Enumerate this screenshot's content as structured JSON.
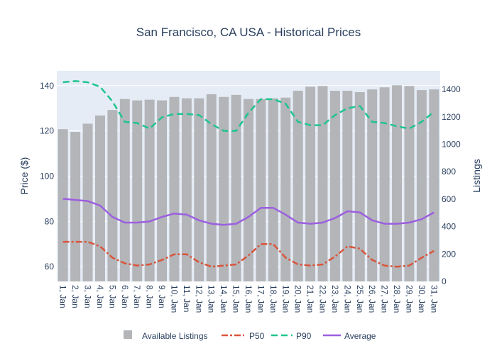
{
  "chart_data": {
    "type": "bar+line",
    "title": "San Francisco, CA USA - Historical Prices",
    "xlabel": "",
    "ylabel_left": "Price ($)",
    "ylabel_right": "Listings",
    "ylim_left": [
      53.5,
      146.5
    ],
    "ylim_right": [
      0,
      1535
    ],
    "yticks_left": [
      60,
      80,
      100,
      120,
      140
    ],
    "yticks_right": [
      0,
      200,
      400,
      600,
      800,
      1000,
      1200,
      1400
    ],
    "categories": [
      "1, Jan",
      "2, Jan",
      "3, Jan",
      "4, Jan",
      "5, Jan",
      "6, Jan",
      "7, Jan",
      "8, Jan",
      "9, Jan",
      "10, Jan",
      "11, Jan",
      "12, Jan",
      "13, Jan",
      "14, Jan",
      "15, Jan",
      "16, Jan",
      "17, Jan",
      "18, Jan",
      "19, Jan",
      "20, Jan",
      "21, Jan",
      "22, Jan",
      "23, Jan",
      "24, Jan",
      "25, Jan",
      "26, Jan",
      "27, Jan",
      "28, Jan",
      "29, Jan",
      "30, Jan",
      "31, Jan"
    ],
    "legend": [
      "Available Listings",
      "P50",
      "P90",
      "Average"
    ],
    "series": [
      {
        "name": "Available Listings",
        "type": "bar",
        "axis": "right",
        "color": "#b3b5b8",
        "values": [
          1110,
          1090,
          1150,
          1210,
          1250,
          1330,
          1320,
          1325,
          1320,
          1345,
          1335,
          1335,
          1365,
          1345,
          1360,
          1330,
          1330,
          1335,
          1340,
          1390,
          1420,
          1425,
          1390,
          1390,
          1380,
          1400,
          1415,
          1430,
          1425,
          1395,
          1400
        ]
      },
      {
        "name": "P50",
        "type": "line",
        "axis": "left",
        "color": "#d9553c",
        "dash": "dashdot",
        "values": [
          71,
          71,
          71,
          69,
          64,
          61.5,
          60.5,
          61,
          63,
          65.5,
          65.5,
          62,
          60,
          60.5,
          61,
          65,
          70,
          70,
          64,
          61,
          60.5,
          61,
          64.5,
          69,
          68,
          63,
          60.5,
          60,
          60.5,
          64,
          67
        ]
      },
      {
        "name": "P90",
        "type": "line",
        "axis": "left",
        "color": "#1fc48f",
        "dash": "dash",
        "values": [
          141.5,
          142,
          141.5,
          139.5,
          133,
          124,
          123.5,
          121,
          126,
          127.5,
          127.5,
          127,
          123,
          120,
          120,
          128,
          134,
          134,
          132,
          124,
          122.5,
          122.5,
          127,
          130,
          131,
          124,
          123.5,
          122,
          121,
          124,
          128.5
        ]
      },
      {
        "name": "Average",
        "type": "line",
        "axis": "left",
        "color": "#9c5fe0",
        "dash": "solid",
        "values": [
          90,
          89.5,
          89,
          87,
          82,
          79.5,
          79.5,
          80,
          82,
          83.5,
          83,
          80.5,
          79,
          78.5,
          79,
          82,
          86,
          86,
          83,
          79.5,
          79,
          79.5,
          81.5,
          84.5,
          84,
          80.5,
          79,
          79,
          79.5,
          81,
          84
        ]
      }
    ]
  }
}
